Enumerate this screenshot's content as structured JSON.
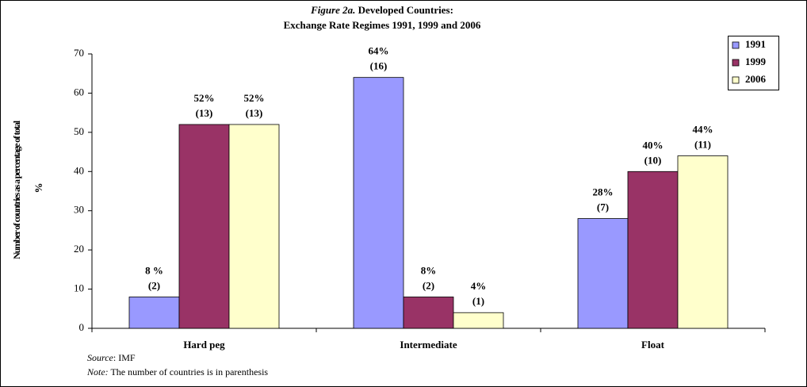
{
  "chart_data": {
    "type": "bar",
    "title_label": "Figure 2a.",
    "title": "Developed Countries:",
    "subtitle": "Exchange Rate Regimes 1991, 1999 and 2006",
    "y_label": "Number of countries as a percentage of total",
    "y_unit": "%",
    "categories": [
      "Hard peg",
      "Intermediate",
      "Float"
    ],
    "series": [
      {
        "name": "1991",
        "color": "#9999ff",
        "values": [
          8,
          64,
          28
        ],
        "value_labels": [
          "8 %",
          "64%",
          "28%"
        ],
        "count_labels": [
          "(2)",
          "(16)",
          "(7)"
        ]
      },
      {
        "name": "1999",
        "color": "#993366",
        "values": [
          52,
          8,
          40
        ],
        "value_labels": [
          "52%",
          "8%",
          "40%"
        ],
        "count_labels": [
          "(13)",
          "(2)",
          "(10)"
        ]
      },
      {
        "name": "2006",
        "color": "#ffffcc",
        "values": [
          52,
          4,
          44
        ],
        "value_labels": [
          "52%",
          "4%",
          "44%"
        ],
        "count_labels": [
          "(13)",
          "(1)",
          "(11)"
        ]
      }
    ],
    "ylim": [
      0,
      70
    ],
    "yticks": [
      0,
      10,
      20,
      30,
      40,
      50,
      60,
      70
    ],
    "legend": "top-right",
    "source_label": "Source",
    "source": ": IMF",
    "note_label": "Note:",
    "note": "The number of countries is in parenthesis"
  }
}
